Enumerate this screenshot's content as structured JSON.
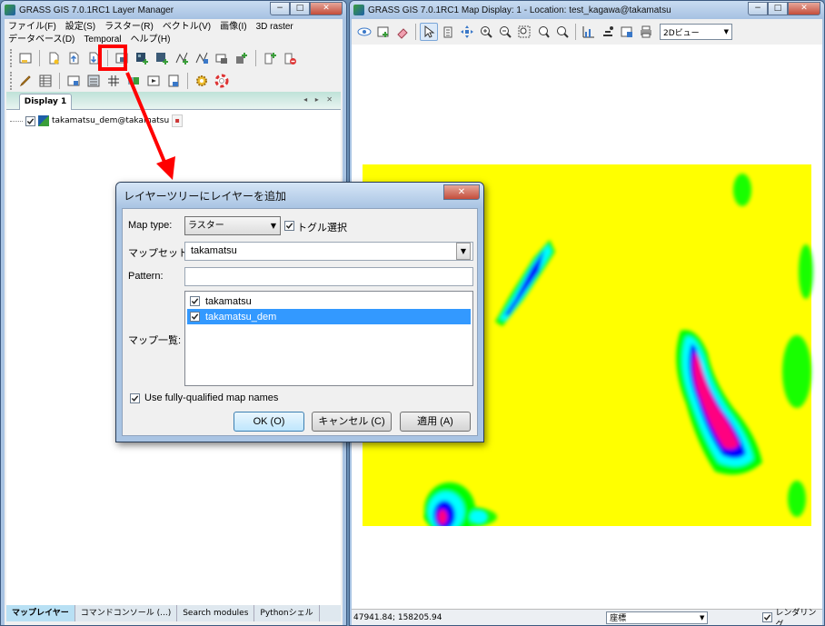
{
  "layer_manager": {
    "title": "GRASS GIS 7.0.1RC1 Layer Manager",
    "caption_buttons": [
      "−",
      "□",
      "✕"
    ],
    "menu_row1": [
      "ファイル(F)",
      "設定(S)",
      "ラスター(R)",
      "ベクトル(V)",
      "画像(I)",
      "3D raster"
    ],
    "menu_row2": [
      "データベース(D)",
      "Temporal",
      "ヘルプ(H)"
    ],
    "display_tab": "Display 1",
    "display_tab_controls": "◂ ▸ ✕",
    "layer_item": "takamatsu_dem@takamatsu",
    "bottom_tabs": [
      "マップレイヤー",
      "コマンドコンソール (...)",
      "Search modules",
      "Pythonシェル"
    ]
  },
  "map_display": {
    "title": "GRASS GIS 7.0.1RC1 Map Display: 1  - Location: test_kagawa@takamatsu",
    "caption_buttons": [
      "−",
      "□",
      "✕"
    ],
    "view_mode": "2Dビュー",
    "coords": "47941.84; 158205.94",
    "status_mode": "座標",
    "render_label": "レンダリング",
    "render_checked": true,
    "colors": {
      "high": "#ff0080",
      "mid": "#0000ff",
      "low": "#00ffff",
      "base": "#ffff00",
      "edge": "#00ff00"
    }
  },
  "dialog": {
    "title": "レイヤーツリーにレイヤーを追加",
    "close": "✕",
    "map_type_label": "Map type:",
    "map_type_value": "ラスター",
    "toggle_label": "トグル選択",
    "toggle_checked": true,
    "mapset_label": "マップセット:",
    "mapset_value": "takamatsu",
    "pattern_label": "Pattern:",
    "pattern_value": "",
    "maplist_label": "マップ一覧:",
    "maps": [
      {
        "name": "takamatsu",
        "checked": true,
        "selected": false
      },
      {
        "name": "takamatsu_dem",
        "checked": true,
        "selected": true
      }
    ],
    "fq_label": "Use fully-qualified map names",
    "fq_checked": true,
    "ok": "OK (O)",
    "cancel": "キャンセル (C)",
    "apply": "適用 (A)"
  }
}
